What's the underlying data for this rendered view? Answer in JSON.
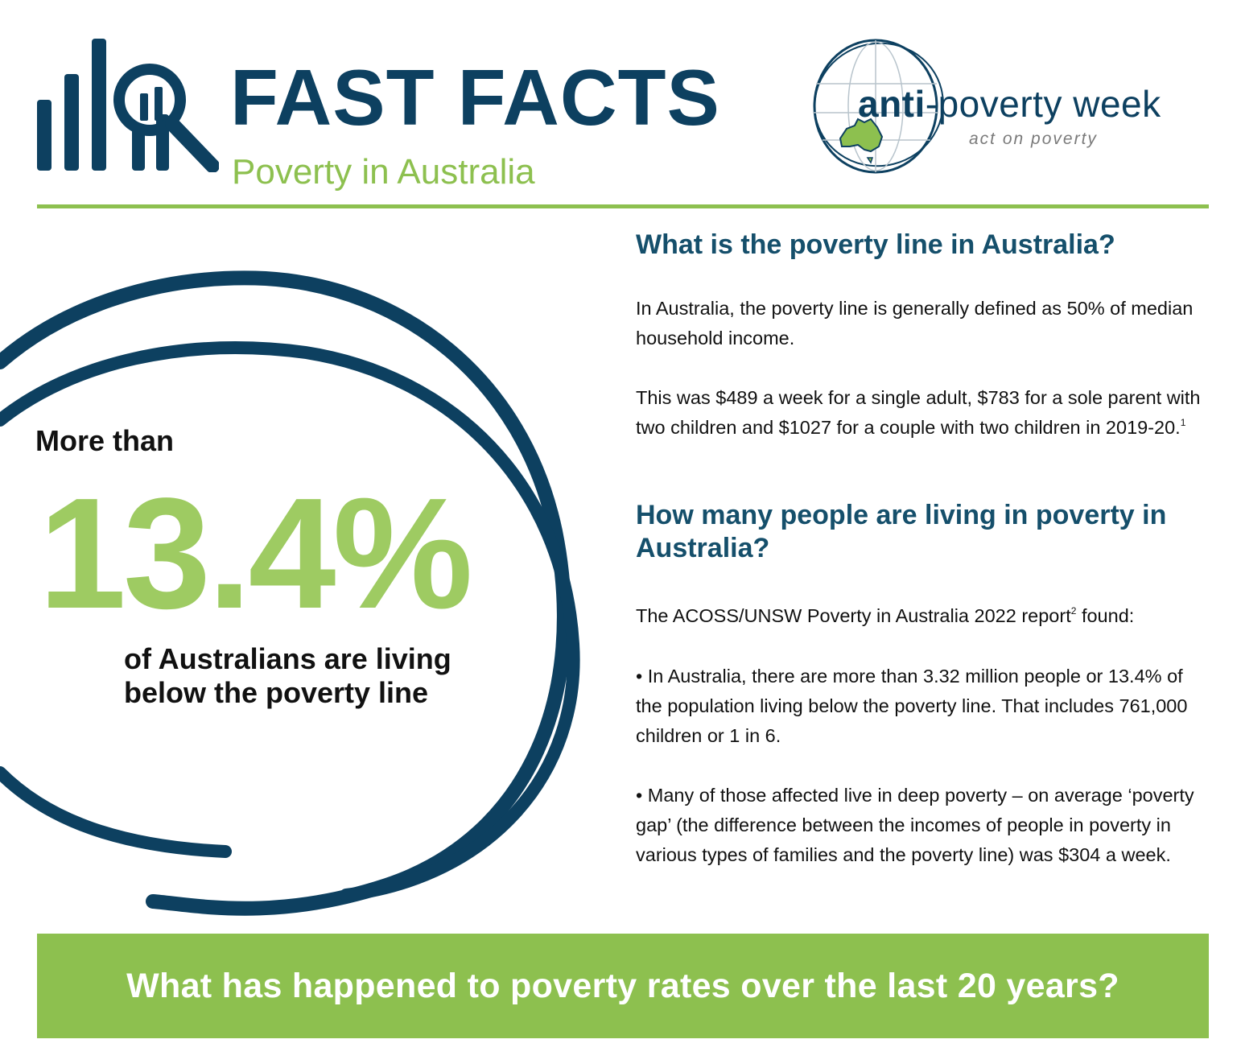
{
  "header": {
    "title": "FAST FACTS",
    "subtitle": "Poverty in Australia",
    "icon": "bar-chart-magnifier-icon"
  },
  "logo": {
    "word_bold": "anti",
    "word_rest": "-poverty week",
    "tagline": "act on poverty",
    "icon": "globe-australia-icon"
  },
  "stat": {
    "prefix": "More than",
    "value": "13.4%",
    "caption": "of Australians are living below the poverty line"
  },
  "section1": {
    "heading": "What is the poverty line in Australia?",
    "paragraph1": "In Australia, the poverty line is generally defined as 50% of median household income.",
    "paragraph2": "This was $489 a week for a single adult, $783 for a sole parent with two children and $1027 for a couple with two children in 2019-20.",
    "footnote_ref": "1"
  },
  "section2": {
    "heading": "How many people are living in poverty in Australia?",
    "intro": "The ACOSS/UNSW Poverty in Australia 2022 report",
    "intro_ref": "2",
    "intro_tail": " found:",
    "bullet1": "• In Australia, there are more than 3.32 million people or 13.4% of the population living below the poverty line. That includes 761,000 children or 1 in 6.",
    "bullet2": "• Many of those affected live in deep poverty – on average ‘poverty gap’ (the difference between the incomes of people in poverty in various types of families and the poverty line) was $304 a week."
  },
  "footer": {
    "banner": "What has happened to poverty rates over the last 20 years?"
  },
  "colors": {
    "navy": "#0d4060",
    "green": "#8dc04f",
    "stat_green": "#9ecb62",
    "heading_blue": "#154f6b"
  }
}
